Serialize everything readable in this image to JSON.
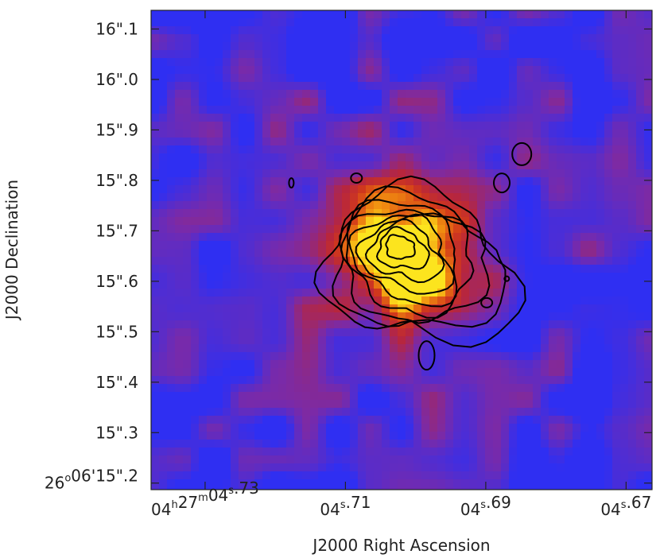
{
  "chart_data": {
    "type": "heatmap",
    "title": "",
    "xlabel": "J2000 Right Ascension",
    "ylabel": "J2000 Declination",
    "x_ticks": [
      {
        "value": 4.73,
        "parts": [
          [
            "04",
            "h"
          ],
          [
            "27",
            "m"
          ],
          [
            "04",
            "s"
          ],
          [
            ".73",
            ""
          ]
        ]
      },
      {
        "value": 4.71,
        "parts": [
          [
            "04",
            "s"
          ],
          [
            ".71",
            ""
          ]
        ]
      },
      {
        "value": 4.69,
        "parts": [
          [
            "04",
            "s"
          ],
          [
            ".69",
            ""
          ]
        ]
      },
      {
        "value": 4.67,
        "parts": [
          [
            "04",
            "s"
          ],
          [
            ".67",
            ""
          ]
        ]
      }
    ],
    "y_ticks": [
      {
        "value": 16.1,
        "parts": [
          [
            "16\"",
            ""
          ],
          [
            ".1",
            ""
          ]
        ]
      },
      {
        "value": 16.0,
        "parts": [
          [
            "16\"",
            ""
          ],
          [
            ".0",
            ""
          ]
        ]
      },
      {
        "value": 15.9,
        "parts": [
          [
            "15\"",
            ""
          ],
          [
            ".9",
            ""
          ]
        ]
      },
      {
        "value": 15.8,
        "parts": [
          [
            "15\"",
            ""
          ],
          [
            ".8",
            ""
          ]
        ]
      },
      {
        "value": 15.7,
        "parts": [
          [
            "15\"",
            ""
          ],
          [
            ".7",
            ""
          ]
        ]
      },
      {
        "value": 15.6,
        "parts": [
          [
            "15\"",
            ""
          ],
          [
            ".6",
            ""
          ]
        ]
      },
      {
        "value": 15.5,
        "parts": [
          [
            "15\"",
            ""
          ],
          [
            ".5",
            ""
          ]
        ]
      },
      {
        "value": 15.4,
        "parts": [
          [
            "15\"",
            ""
          ],
          [
            ".4",
            ""
          ]
        ]
      },
      {
        "value": 15.3,
        "parts": [
          [
            "15\"",
            ""
          ],
          [
            ".3",
            ""
          ]
        ]
      },
      {
        "value": 15.2,
        "parts": [
          [
            "26",
            "o"
          ],
          [
            "06'15\"",
            ""
          ],
          [
            ".2",
            ""
          ]
        ]
      }
    ],
    "xlim": [
      4.7377,
      4.6663
    ],
    "ylim": [
      15.187,
      16.137
    ],
    "colormap": [
      "#2f2ff2",
      "#7a2aa8",
      "#b8263c",
      "#d2391a",
      "#f08a10",
      "#fce41e"
    ],
    "source": {
      "ra": 4.7027,
      "dec": 15.674,
      "sigma_ra": 0.0052,
      "sigma_dec": 0.065
    },
    "contour_color": "#000000"
  }
}
